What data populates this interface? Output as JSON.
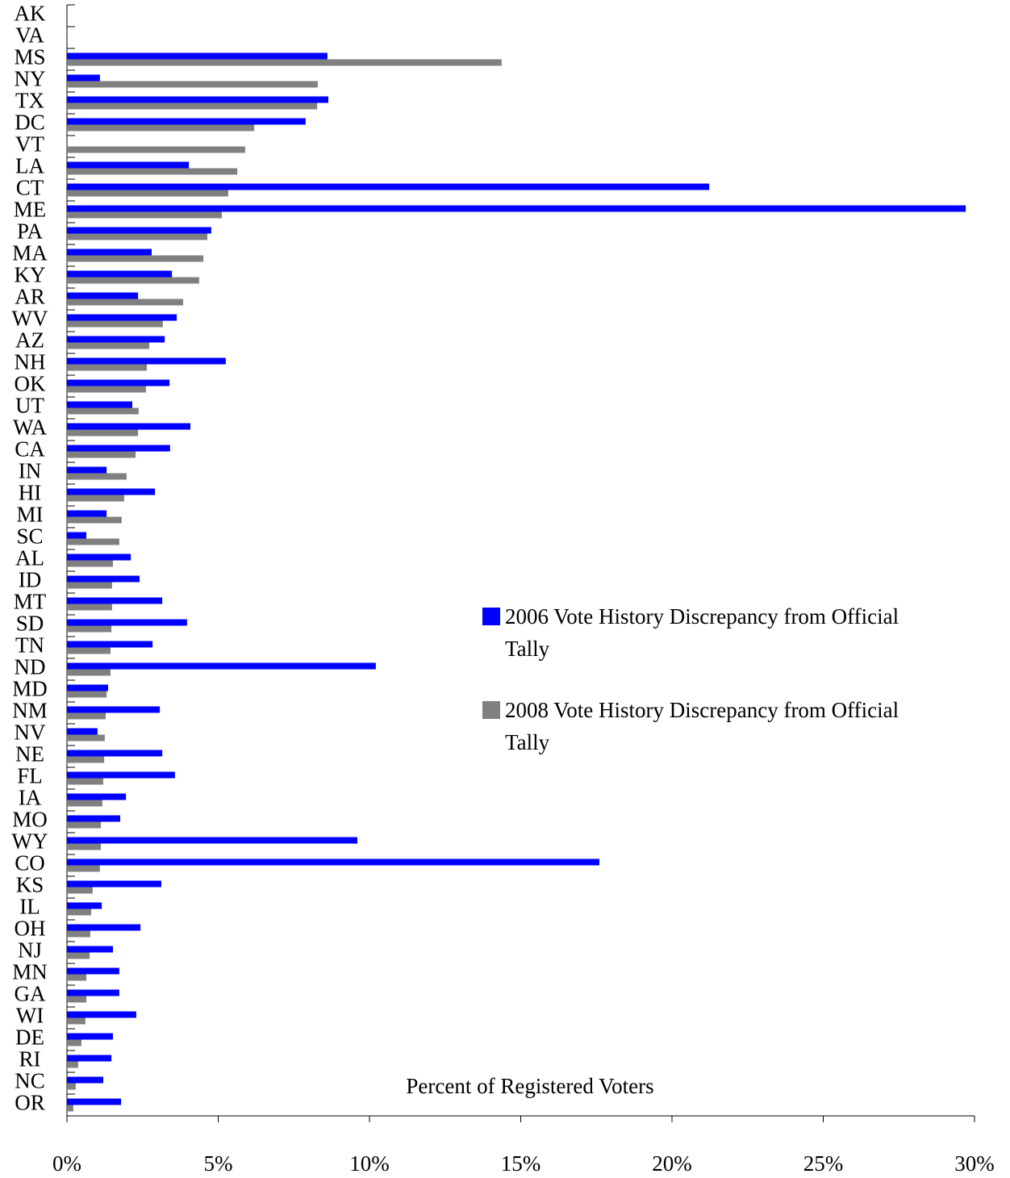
{
  "chart_data": {
    "type": "hbar",
    "x_label": "Percent of Registered Voters",
    "categories": [
      "AK",
      "VA",
      "MS",
      "NY",
      "TX",
      "DC",
      "VT",
      "LA",
      "CT",
      "ME",
      "PA",
      "MA",
      "KY",
      "AR",
      "WV",
      "AZ",
      "NH",
      "OK",
      "UT",
      "WA",
      "CA",
      "IN",
      "HI",
      "MI",
      "SC",
      "AL",
      "ID",
      "MT",
      "SD",
      "TN",
      "ND",
      "MD",
      "NM",
      "NV",
      "NE",
      "FL",
      "IA",
      "MO",
      "WY",
      "CO",
      "KS",
      "IL",
      "OH",
      "NJ",
      "MN",
      "GA",
      "WI",
      "DE",
      "RI",
      "NC",
      "OR"
    ],
    "series": [
      {
        "name": "2006 Vote History Discrepancy from Official Tally",
        "color": "#0000ff",
        "values": [
          null,
          null,
          8.61,
          1.09,
          8.64,
          7.89,
          null,
          4.03,
          21.23,
          29.71,
          4.77,
          2.8,
          3.47,
          2.35,
          3.63,
          3.23,
          5.25,
          3.39,
          2.16,
          4.08,
          3.41,
          1.31,
          2.91,
          1.31,
          0.64,
          2.11,
          2.4,
          3.15,
          3.97,
          2.83,
          10.21,
          1.36,
          3.07,
          1.01,
          3.15,
          3.57,
          1.95,
          1.76,
          9.6,
          17.6,
          3.12,
          1.15,
          2.43,
          1.52,
          1.73,
          1.73,
          2.29,
          1.52,
          1.47,
          1.2,
          1.79
        ]
      },
      {
        "name": "2008 Vote History Discrepancy from Official Tally",
        "color": "#808080",
        "values": [
          null,
          null,
          14.37,
          8.29,
          8.27,
          6.19,
          5.89,
          5.63,
          5.33,
          5.12,
          4.64,
          4.51,
          4.37,
          3.84,
          3.17,
          2.72,
          2.64,
          2.61,
          2.37,
          2.35,
          2.27,
          1.97,
          1.89,
          1.81,
          1.73,
          1.52,
          1.49,
          1.49,
          1.47,
          1.44,
          1.44,
          1.31,
          1.28,
          1.25,
          1.23,
          1.2,
          1.17,
          1.12,
          1.12,
          1.09,
          0.85,
          0.8,
          0.77,
          0.75,
          0.64,
          0.64,
          0.61,
          0.48,
          0.37,
          0.29,
          0.21
        ]
      }
    ],
    "xlim": [
      0,
      30
    ],
    "xticks": [
      {
        "value": 0,
        "label": "0%"
      },
      {
        "value": 5,
        "label": "5%"
      },
      {
        "value": 10,
        "label": "10%"
      },
      {
        "value": 15,
        "label": "15%"
      },
      {
        "value": 20,
        "label": "20%"
      },
      {
        "value": 25,
        "label": "25%"
      },
      {
        "value": 30,
        "label": "30%"
      }
    ]
  }
}
